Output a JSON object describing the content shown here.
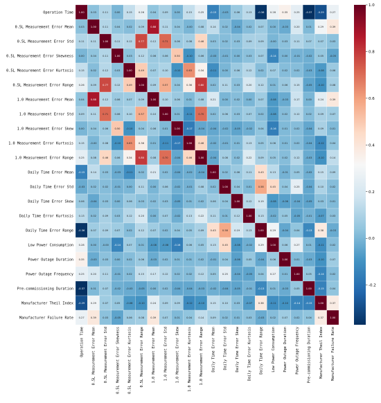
{
  "chart_data": {
    "type": "heatmap",
    "labels": [
      "Operation Time",
      "0.5L Measurement Error Mean",
      "0.5L Measurement Error Std",
      "0.5L Measurement Error Skewness",
      "0.5L Measurement Error Kurtosis",
      "0.5L Measurement Error Range",
      "1.0 Measurement Error Mean",
      "1.0 Measurement Error Std",
      "1.0 Measurement Error Skew",
      "1.0 Measurement Error Kurtosis",
      "1.0 Measurement Error Range",
      "Daily Time Error Mean",
      "Daily Time Error Std",
      "Daily Time Error Skew",
      "Daily Time Error Kurtosis",
      "Daily Time Error Range",
      "Low Power Consumption",
      "Power Outage Duration",
      "Power Outage Frequency",
      "Pre-commissioning Duration",
      "Manufacturer Theil Index",
      "Manufacturer Failure Rate"
    ],
    "values": [
      [
        1.0,
        0.03,
        0.11,
        0.0,
        0.15,
        0.26,
        0.04,
        0.09,
        0.0,
        0.15,
        0.25,
        -0.15,
        -0.03,
        0.06,
        0.13,
        -0.36,
        0.28,
        0.35,
        0.25,
        -0.37,
        -0.29,
        0.27
      ],
      [
        0.03,
        1.0,
        0.11,
        0.04,
        0.02,
        0.09,
        0.88,
        0.11,
        0.04,
        -0.0,
        0.08,
        0.14,
        0.02,
        -0.04,
        0.02,
        0.07,
        0.0,
        -0.03,
        0.2,
        0.01,
        0.29,
        0.39
      ],
      [
        0.11,
        0.11,
        1.0,
        0.11,
        0.12,
        0.77,
        0.12,
        0.71,
        0.06,
        0.08,
        0.46,
        0.03,
        0.02,
        0.03,
        0.09,
        0.09,
        -0.0,
        0.03,
        0.11,
        0.07,
        0.07,
        0.03
      ],
      [
        0.0,
        0.04,
        0.11,
        1.0,
        0.03,
        0.12,
        0.06,
        0.06,
        0.5,
        -0.1,
        0.06,
        -0.03,
        -0.01,
        0.0,
        0.03,
        0.07,
        -0.14,
        0.0,
        -0.01,
        -0.02,
        0.05,
        -0.05
      ],
      [
        0.15,
        0.02,
        0.12,
        0.03,
        1.0,
        0.49,
        0.07,
        0.1,
        -0.1,
        0.63,
        0.34,
        -0.11,
        0.0,
        0.06,
        0.12,
        0.02,
        0.07,
        0.02,
        0.02,
        -0.03,
        -0.08,
        0.06
      ],
      [
        0.26,
        0.09,
        0.77,
        0.12,
        0.49,
        1.0,
        0.09,
        0.57,
        0.04,
        0.36,
        0.8,
        0.02,
        0.11,
        0.03,
        0.2,
        0.12,
        0.01,
        0.06,
        0.15,
        -0.05,
        -0.1,
        0.08
      ],
      [
        0.04,
        0.88,
        0.12,
        0.06,
        0.07,
        0.09,
        1.0,
        0.1,
        0.06,
        0.01,
        0.08,
        0.21,
        0.0,
        0.02,
        0.0,
        0.07,
        -0.08,
        -0.03,
        0.17,
        0.0,
        0.24,
        0.39
      ],
      [
        0.09,
        0.11,
        0.71,
        0.06,
        0.1,
        0.57,
        0.1,
        1.0,
        0.01,
        -0.11,
        0.7,
        0.02,
        0.06,
        0.03,
        0.07,
        0.02,
        -0.08,
        0.02,
        0.12,
        0.02,
        0.09,
        0.07
      ],
      [
        0.0,
        0.04,
        0.06,
        0.5,
        -0.1,
        0.04,
        0.06,
        0.01,
        1.0,
        -0.17,
        -0.04,
        -0.04,
        -0.02,
        -0.05,
        -0.02,
        0.04,
        -0.16,
        0.01,
        0.02,
        -0.04,
        0.09,
        0.01
      ],
      [
        0.15,
        -0.0,
        0.08,
        -0.1,
        0.63,
        0.36,
        0.01,
        -0.11,
        -0.17,
        1.0,
        0.46,
        -0.02,
        -0.01,
        0.01,
        0.13,
        0.05,
        0.06,
        0.01,
        0.02,
        -0.04,
        -0.12,
        0.04
      ],
      [
        0.25,
        0.08,
        0.46,
        0.06,
        0.34,
        0.8,
        0.08,
        0.7,
        -0.04,
        0.46,
        1.0,
        -0.04,
        0.08,
        0.02,
        0.22,
        0.09,
        0.05,
        0.02,
        0.12,
        -0.03,
        -0.1,
        0.14
      ],
      [
        -0.15,
        0.14,
        0.03,
        -0.03,
        -0.11,
        0.02,
        0.21,
        0.02,
        -0.04,
        -0.02,
        -0.04,
        1.0,
        0.02,
        0.06,
        0.11,
        0.43,
        0.13,
        -0.01,
        0.05,
        -0.02,
        0.15,
        0.09
      ],
      [
        -0.03,
        0.02,
        0.02,
        -0.01,
        0.0,
        0.11,
        0.0,
        0.06,
        -0.02,
        -0.01,
        0.08,
        0.02,
        1.0,
        0.04,
        0.01,
        0.58,
        0.45,
        0.04,
        0.25,
        -0.04,
        0.1,
        0.02
      ],
      [
        0.06,
        -0.04,
        0.03,
        0.0,
        0.06,
        0.03,
        0.02,
        0.03,
        -0.05,
        0.01,
        0.02,
        0.06,
        0.04,
        1.0,
        0.12,
        0.19,
        -0.08,
        -0.06,
        -0.04,
        -0.05,
        0.03,
        0.01
      ],
      [
        0.13,
        0.02,
        0.09,
        0.03,
        0.12,
        0.2,
        0.0,
        0.07,
        -0.02,
        0.13,
        0.22,
        0.11,
        0.01,
        0.12,
        1.0,
        0.13,
        -0.02,
        0.05,
        -0.05,
        -0.01,
        -0.07,
        0.03
      ],
      [
        -0.36,
        0.07,
        0.09,
        0.07,
        0.02,
        0.12,
        0.07,
        0.02,
        0.04,
        0.05,
        0.09,
        0.43,
        0.58,
        0.19,
        0.13,
        1.0,
        0.29,
        -0.04,
        0.04,
        -0.13,
        0.38,
        -0.03
      ],
      [
        0.28,
        0.0,
        -0.0,
        -0.14,
        0.07,
        0.01,
        -0.08,
        -0.08,
        -0.16,
        0.06,
        0.05,
        0.13,
        0.45,
        -0.08,
        -0.02,
        0.29,
        1.0,
        0.06,
        0.27,
        0.01,
        -0.11,
        0.02
      ],
      [
        0.35,
        -0.03,
        0.03,
        0.0,
        0.02,
        0.06,
        -0.03,
        0.02,
        0.01,
        0.01,
        0.02,
        -0.01,
        0.04,
        -0.06,
        0.05,
        -0.04,
        0.06,
        1.0,
        0.01,
        -0.03,
        -0.1,
        0.07
      ],
      [
        0.25,
        0.2,
        0.11,
        -0.01,
        0.02,
        0.15,
        0.17,
        0.12,
        0.02,
        0.02,
        0.12,
        0.05,
        0.25,
        -0.04,
        -0.05,
        0.04,
        0.27,
        0.01,
        1.0,
        0.05,
        -0.14,
        0.02
      ],
      [
        -0.37,
        0.01,
        0.07,
        -0.02,
        -0.03,
        -0.05,
        0.0,
        0.02,
        -0.04,
        -0.04,
        -0.03,
        -0.02,
        -0.04,
        -0.05,
        -0.01,
        -0.13,
        0.01,
        -0.03,
        0.05,
        1.0,
        -0.15,
        0.04
      ],
      [
        -0.29,
        0.29,
        0.07,
        0.05,
        -0.08,
        -0.1,
        0.24,
        0.09,
        0.09,
        -0.12,
        -0.1,
        0.15,
        0.1,
        0.03,
        -0.07,
        0.38,
        -0.11,
        -0.1,
        -0.14,
        -0.15,
        1.0,
        0.37
      ],
      [
        0.27,
        0.39,
        0.03,
        -0.05,
        0.06,
        0.08,
        0.39,
        0.07,
        0.01,
        0.04,
        0.14,
        0.09,
        0.02,
        0.01,
        0.03,
        -0.03,
        0.02,
        0.07,
        0.02,
        0.04,
        0.37,
        1.0
      ]
    ],
    "value_range": [
      -0.37,
      1.0
    ],
    "colorbar_ticks": [
      -0.2,
      0.0,
      0.2,
      0.4,
      0.6,
      0.8,
      1.0
    ],
    "colormap": [
      "#053061",
      "#2166ac",
      "#4393c3",
      "#92c5de",
      "#d1e5f0",
      "#f7f7f7",
      "#fddbc7",
      "#f4a582",
      "#d6604d",
      "#b2182b",
      "#67001f"
    ],
    "legend": "right"
  }
}
